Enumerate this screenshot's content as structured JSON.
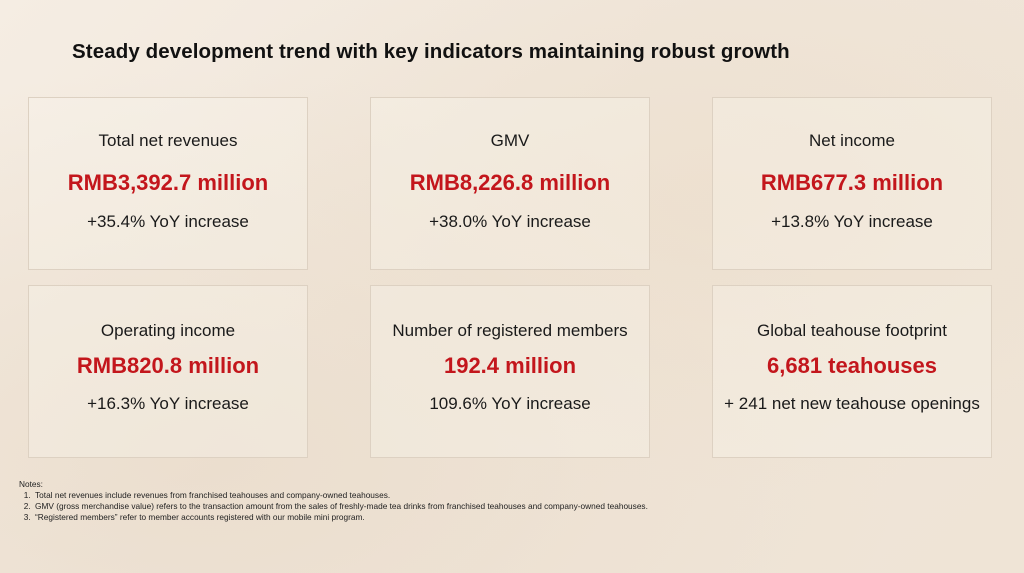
{
  "title": "Steady development trend with key indicators maintaining robust growth",
  "cards": [
    {
      "label": "Total net revenues",
      "value": "RMB3,392.7 million",
      "sub": "+35.4% YoY increase"
    },
    {
      "label": "GMV",
      "value": "RMB8,226.8 million",
      "sub": "+38.0% YoY increase"
    },
    {
      "label": "Net income",
      "value": "RMB677.3 million",
      "sub": "+13.8% YoY increase"
    },
    {
      "label": "Operating income",
      "value": "RMB820.8 million",
      "sub": "+16.3% YoY increase"
    },
    {
      "label": "Number of registered members",
      "value": "192.4 million",
      "sub": "109.6% YoY increase"
    },
    {
      "label": "Global teahouse footprint",
      "value": "6,681 teahouses",
      "sub": "+ 241 net new teahouse openings"
    }
  ],
  "notes": {
    "heading": "Notes:",
    "items": [
      "Total net revenues include revenues from franchised teahouses and company-owned teahouses.",
      "GMV (gross merchandise value) refers to the transaction amount from the sales of freshly-made tea drinks from franchised teahouses and company-owned teahouses.",
      "“Registered members” refer to member accounts registered with our mobile mini program."
    ]
  },
  "colors": {
    "accent": "#c3161c",
    "card_border": "#ddd1c2",
    "background": "#f2e9de"
  }
}
